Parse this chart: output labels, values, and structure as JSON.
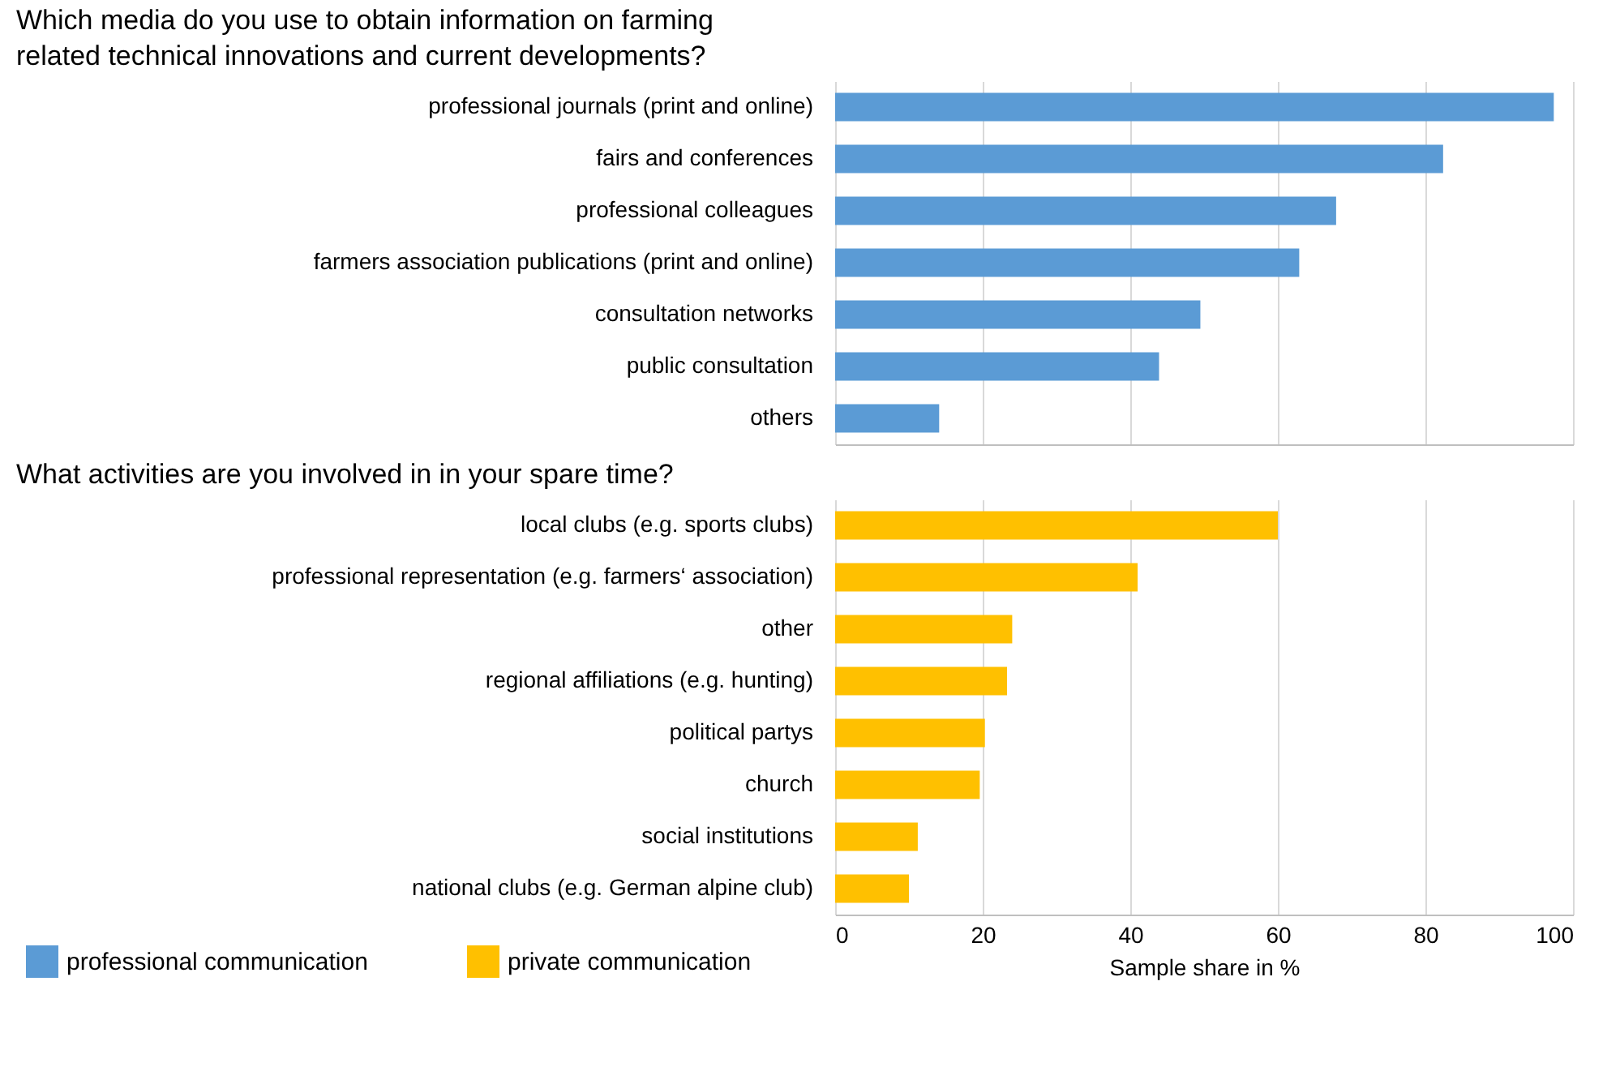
{
  "chart_data": [
    {
      "type": "bar",
      "orientation": "horizontal",
      "title": "Which media do you use to obtain information on farming related technical innovations and current developments?",
      "categories": [
        "professional journals (print and online)",
        "fairs and conferences",
        "professional colleagues",
        "farmers association publications (print and online)",
        "consultation networks",
        "public consultation",
        "others"
      ],
      "series": [
        {
          "name": "professional communication",
          "color": "#5b9bd5",
          "values": [
            97.4,
            82.4,
            67.9,
            62.9,
            49.5,
            43.9,
            14.1
          ]
        }
      ],
      "xlim": [
        0,
        100
      ],
      "xticks": [
        0,
        20,
        40,
        60,
        80,
        100
      ],
      "grid": "x",
      "tick_labels": "y",
      "legend": "bottom"
    },
    {
      "type": "bar",
      "orientation": "horizontal",
      "title": "What activities are you involved in in your spare time?",
      "xlabel": "Sample share in %",
      "categories": [
        "local clubs (e.g. sports clubs)",
        "professional representation (e.g. farmers‘ association)",
        "other",
        "regional affiliations (e.g. hunting)",
        "political partys",
        "church",
        "social institutions",
        "national clubs (e.g. German alpine club)"
      ],
      "series": [
        {
          "name": "private communication",
          "color": "#ffc000",
          "values": [
            60.0,
            41.0,
            24.0,
            23.3,
            20.3,
            19.6,
            11.2,
            10.0
          ]
        }
      ],
      "xlim": [
        0,
        100
      ],
      "xticks": [
        0,
        20,
        40,
        60,
        80,
        100
      ],
      "grid": "x",
      "legend": "bottom"
    }
  ]
}
